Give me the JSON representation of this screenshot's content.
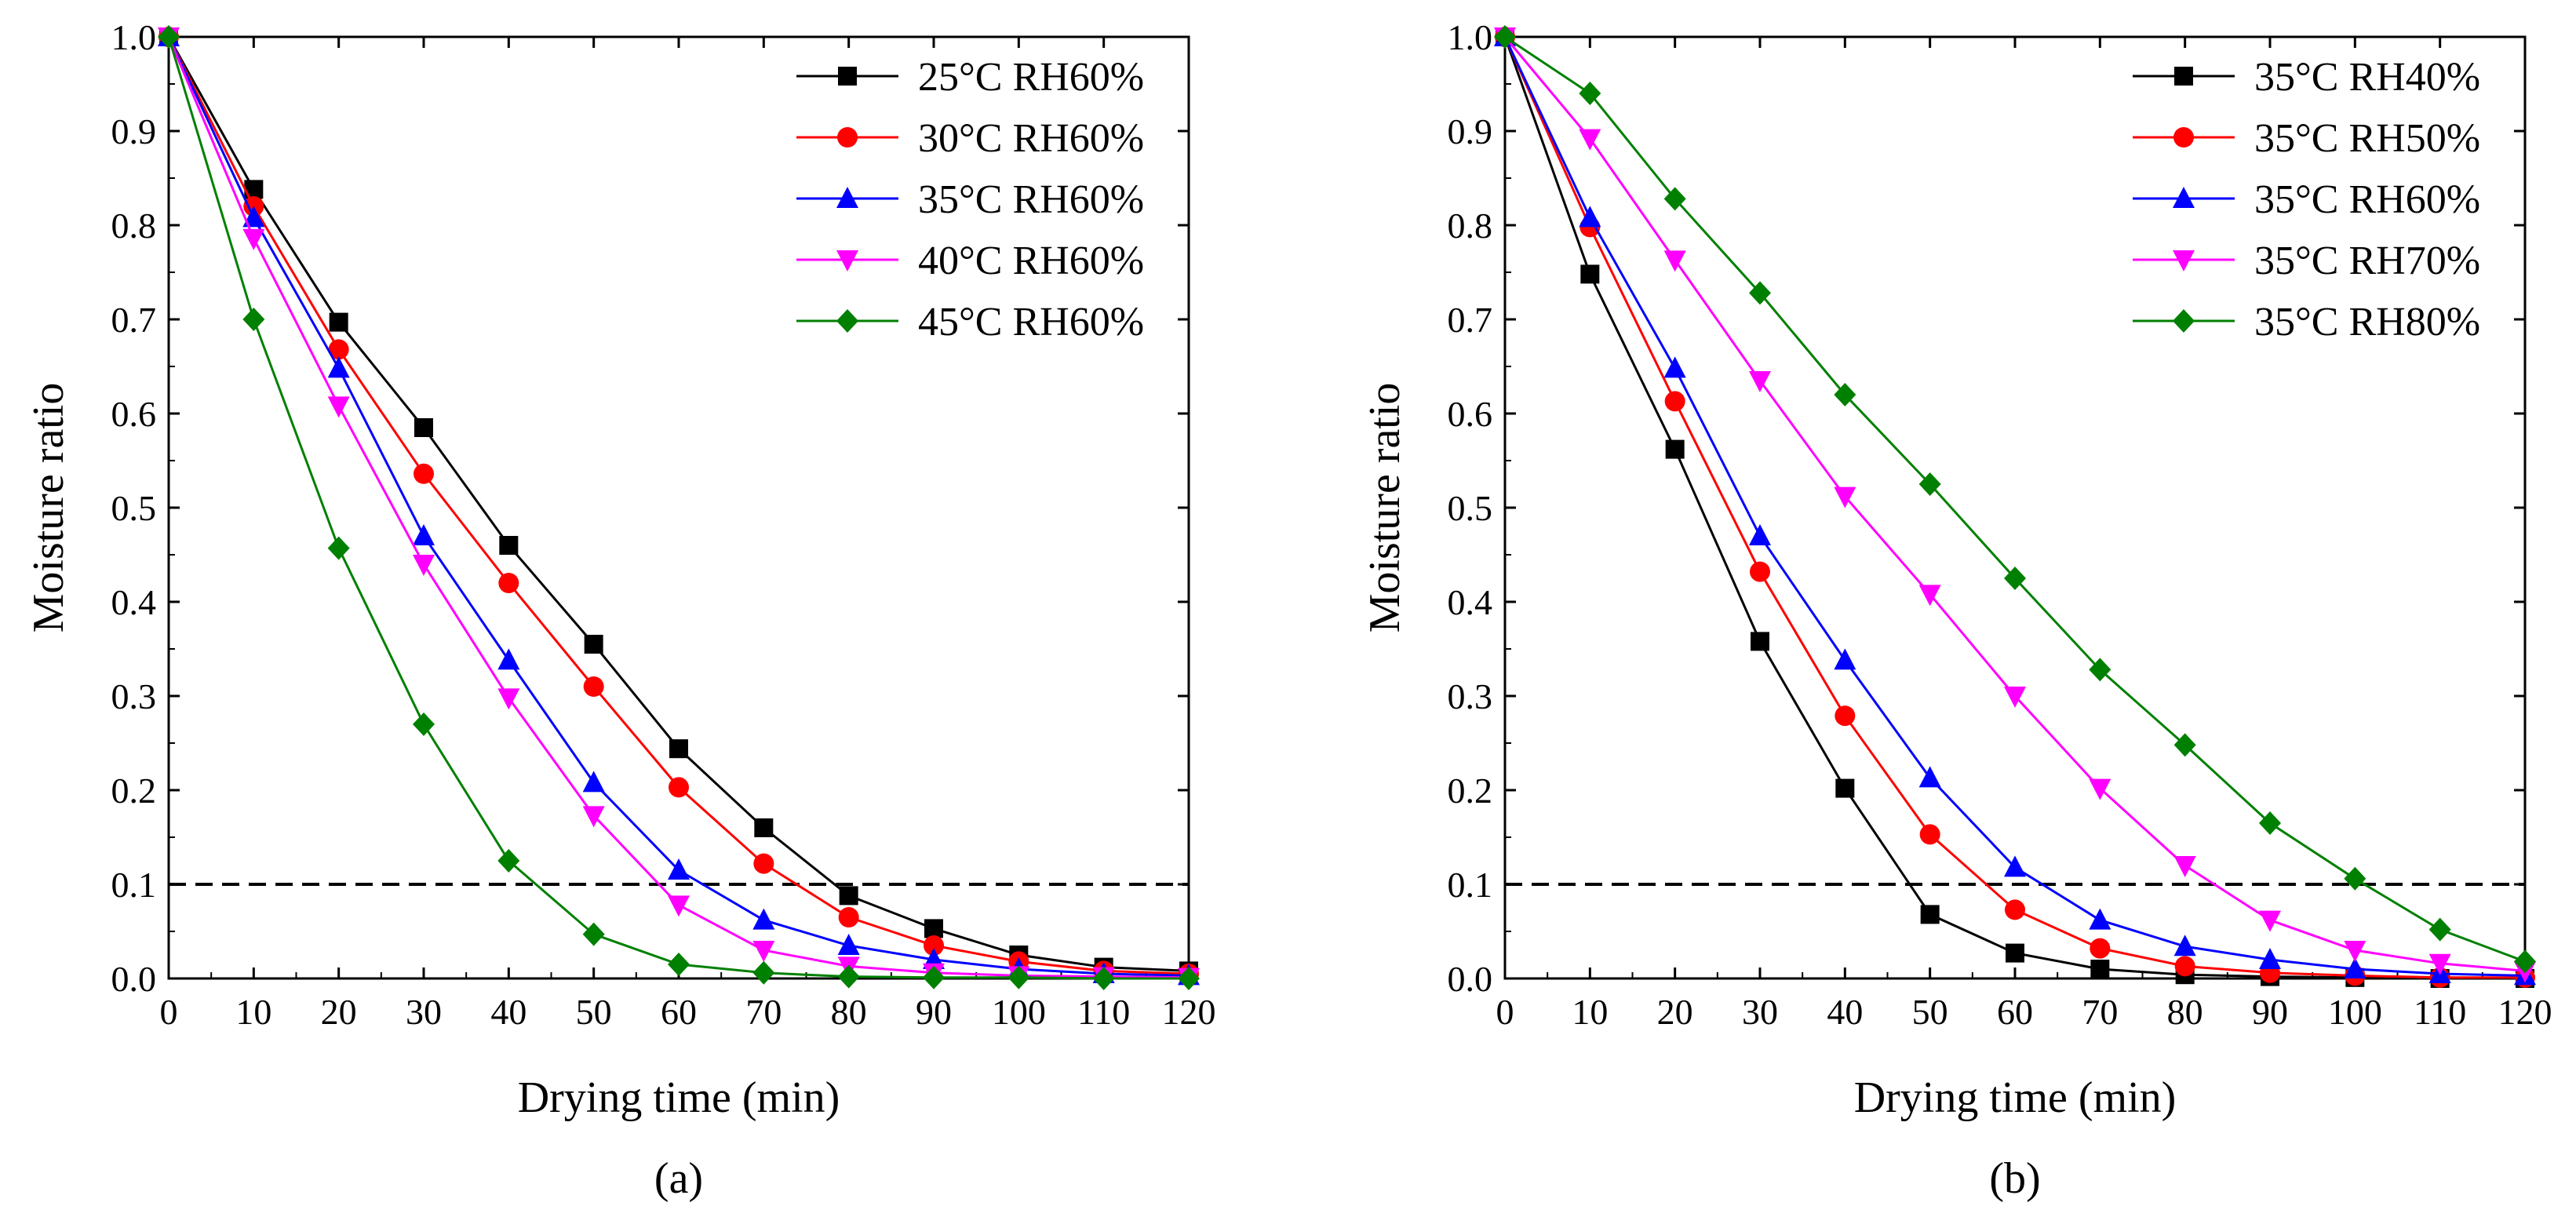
{
  "chart_data": [
    {
      "type": "line",
      "panel_label": "(a)",
      "xlabel": "Drying time (min)",
      "ylabel": "Moisture ratio",
      "xlim": [
        0,
        120
      ],
      "ylim": [
        0.0,
        1.0
      ],
      "x_ticks": [
        "0",
        "10",
        "20",
        "30",
        "40",
        "50",
        "60",
        "70",
        "80",
        "90",
        "100",
        "110",
        "120"
      ],
      "y_ticks": [
        "0.0",
        "0.1",
        "0.2",
        "0.3",
        "0.4",
        "0.5",
        "0.6",
        "0.7",
        "0.8",
        "0.9",
        "1.0"
      ],
      "reference_line": {
        "y": 0.1,
        "style": "dashed"
      },
      "legend_position": "top-right",
      "x": [
        0,
        10,
        20,
        30,
        40,
        50,
        60,
        70,
        80,
        90,
        100,
        110,
        120
      ],
      "series": [
        {
          "name": "25°C RH60%",
          "marker": "square",
          "color": "#000000",
          "values": [
            1.0,
            0.838,
            0.697,
            0.585,
            0.46,
            0.355,
            0.244,
            0.16,
            0.088,
            0.053,
            0.025,
            0.012,
            0.008
          ]
        },
        {
          "name": "30°C RH60%",
          "marker": "circle",
          "color": "#ff0000",
          "values": [
            1.0,
            0.82,
            0.668,
            0.536,
            0.42,
            0.31,
            0.203,
            0.122,
            0.065,
            0.035,
            0.018,
            0.008,
            0.005
          ]
        },
        {
          "name": "35°C RH60%",
          "marker": "triangle-up",
          "color": "#0000ff",
          "values": [
            1.0,
            0.808,
            0.648,
            0.47,
            0.338,
            0.208,
            0.115,
            0.062,
            0.035,
            0.02,
            0.01,
            0.005,
            0.003
          ]
        },
        {
          "name": "40°C RH60%",
          "marker": "triangle-down",
          "color": "#ff00ff",
          "values": [
            1.0,
            0.786,
            0.608,
            0.44,
            0.298,
            0.173,
            0.078,
            0.03,
            0.013,
            0.006,
            0.003,
            0.002,
            0.001
          ]
        },
        {
          "name": "45°C RH60%",
          "marker": "diamond",
          "color": "#008000",
          "values": [
            1.0,
            0.7,
            0.457,
            0.27,
            0.125,
            0.047,
            0.015,
            0.006,
            0.002,
            0.001,
            0.001,
            0.0,
            0.0
          ]
        }
      ]
    },
    {
      "type": "line",
      "panel_label": "(b)",
      "xlabel": "Drying time (min)",
      "ylabel": "Moisture ratio",
      "xlim": [
        0,
        120
      ],
      "ylim": [
        0.0,
        1.0
      ],
      "x_ticks": [
        "0",
        "10",
        "20",
        "30",
        "40",
        "50",
        "60",
        "70",
        "80",
        "90",
        "100",
        "110",
        "120"
      ],
      "y_ticks": [
        "0.0",
        "0.1",
        "0.2",
        "0.3",
        "0.4",
        "0.5",
        "0.6",
        "0.7",
        "0.8",
        "0.9",
        "1.0"
      ],
      "reference_line": {
        "y": 0.1,
        "style": "dashed"
      },
      "legend_position": "top-right",
      "x": [
        0,
        10,
        20,
        30,
        40,
        50,
        60,
        70,
        80,
        90,
        100,
        110,
        120
      ],
      "series": [
        {
          "name": "35°C RH40%",
          "marker": "square",
          "color": "#000000",
          "values": [
            1.0,
            0.748,
            0.562,
            0.358,
            0.202,
            0.068,
            0.027,
            0.01,
            0.004,
            0.002,
            0.001,
            0.0,
            0.0
          ]
        },
        {
          "name": "35°C RH50%",
          "marker": "circle",
          "color": "#ff0000",
          "values": [
            1.0,
            0.798,
            0.613,
            0.432,
            0.279,
            0.153,
            0.073,
            0.032,
            0.013,
            0.006,
            0.003,
            0.001,
            0.001
          ]
        },
        {
          "name": "35°C RH60%",
          "marker": "triangle-up",
          "color": "#0000ff",
          "values": [
            1.0,
            0.808,
            0.648,
            0.47,
            0.338,
            0.213,
            0.118,
            0.062,
            0.034,
            0.02,
            0.01,
            0.005,
            0.003
          ]
        },
        {
          "name": "35°C RH70%",
          "marker": "triangle-down",
          "color": "#ff00ff",
          "values": [
            1.0,
            0.892,
            0.763,
            0.635,
            0.512,
            0.408,
            0.3,
            0.202,
            0.12,
            0.062,
            0.03,
            0.016,
            0.008
          ]
        },
        {
          "name": "35°C RH80%",
          "marker": "diamond",
          "color": "#008000",
          "values": [
            1.0,
            0.94,
            0.828,
            0.728,
            0.62,
            0.525,
            0.425,
            0.328,
            0.248,
            0.165,
            0.106,
            0.052,
            0.018
          ]
        }
      ]
    }
  ]
}
